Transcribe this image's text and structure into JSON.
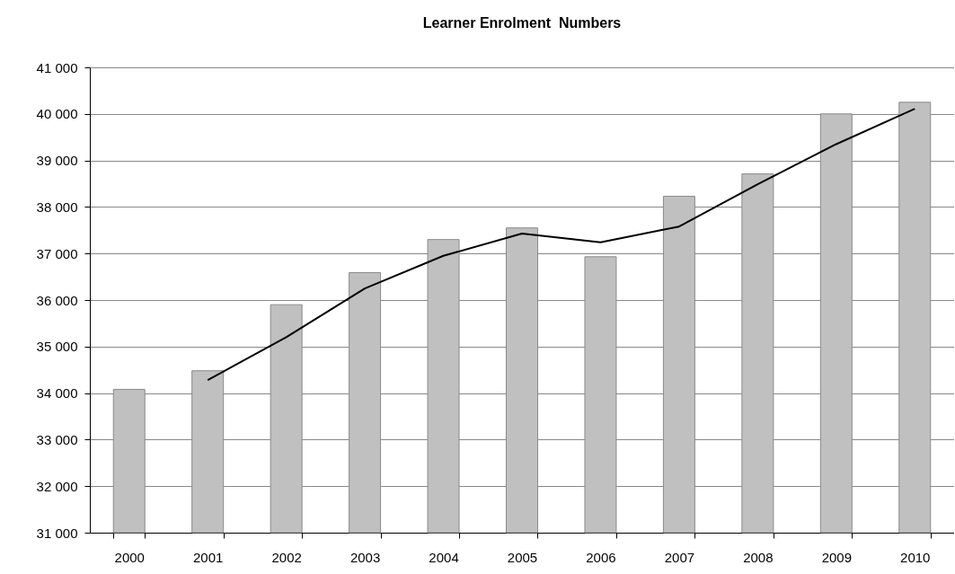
{
  "chart_data": {
    "type": "bar",
    "title": "Learner Enrolment  Numbers",
    "categories": [
      "2000",
      "2001",
      "2002",
      "2003",
      "2004",
      "2005",
      "2006",
      "2007",
      "2008",
      "2009",
      "2010"
    ],
    "series": [
      {
        "color": "#c0c0c0",
        "values": [
          34080,
          34480,
          35900,
          36590,
          37300,
          37550,
          36930,
          38230,
          38710,
          40000,
          40250
        ]
      },
      {
        "type": "line",
        "color": "#000000",
        "values": [
          null,
          34280,
          35200,
          36250,
          36950,
          37430,
          37240,
          37580,
          38490,
          39350,
          40110
        ]
      }
    ],
    "ylim": [
      31000,
      41000
    ],
    "yticks": [
      {
        "value": 31000,
        "label": "31 000"
      },
      {
        "value": 32000,
        "label": "32 000"
      },
      {
        "value": 33000,
        "label": "33 000"
      },
      {
        "value": 34000,
        "label": "34 000"
      },
      {
        "value": 35000,
        "label": "35 000"
      },
      {
        "value": 36000,
        "label": "36 000"
      },
      {
        "value": 37000,
        "label": "37 000"
      },
      {
        "value": 38000,
        "label": "38 000"
      },
      {
        "value": 39000,
        "label": "39 000"
      },
      {
        "value": 40000,
        "label": "40 000"
      },
      {
        "value": 41000,
        "label": "41 000"
      }
    ],
    "grid": "y"
  }
}
